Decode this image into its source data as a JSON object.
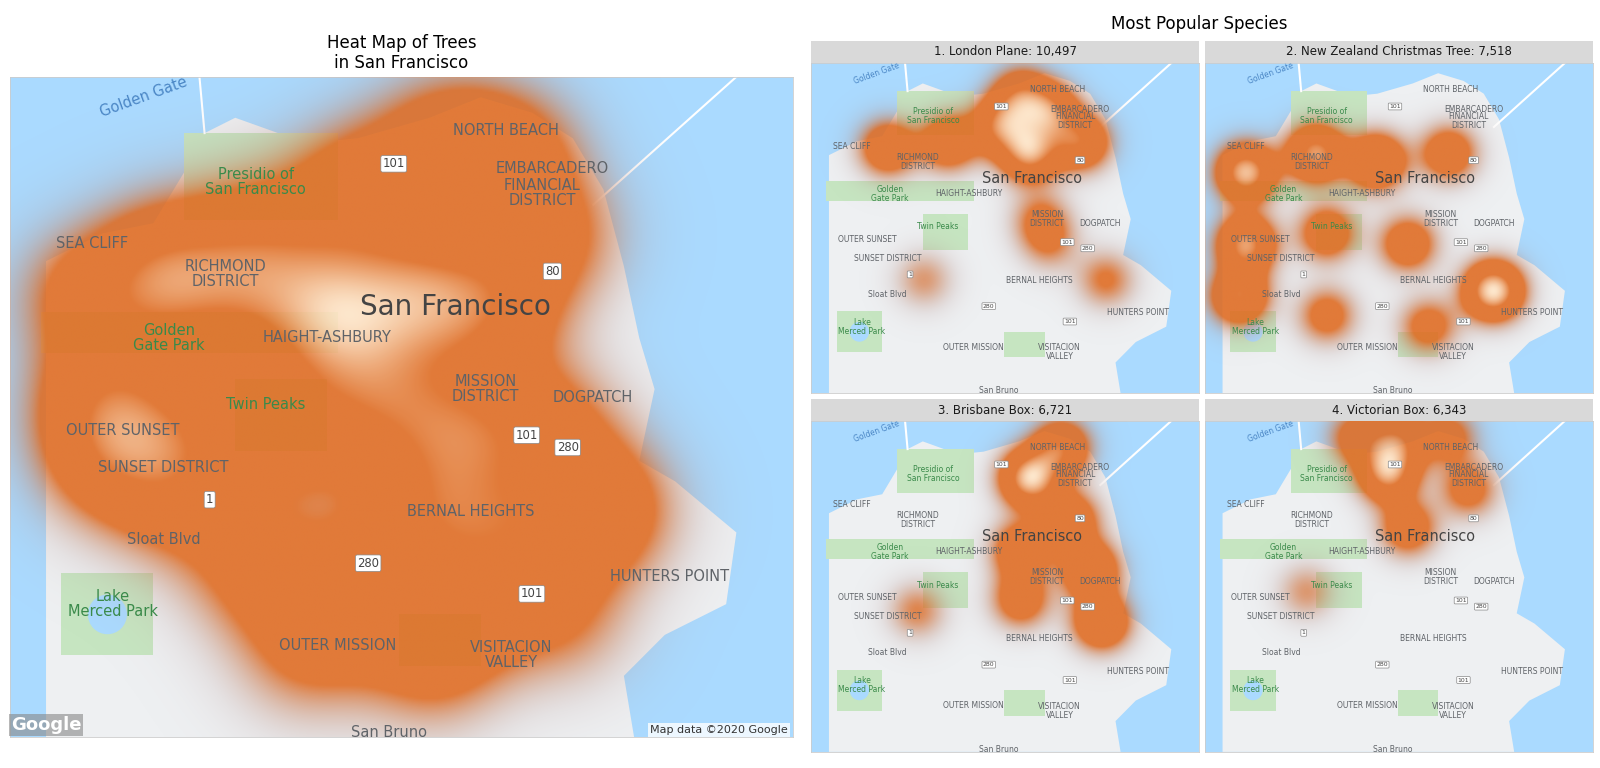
{
  "facet_title": "Most Popular Species",
  "map_labels": [
    "Golden Gate",
    "Presidio of\nSan Francisco",
    "SEA CLIFF",
    "RICHMOND\nDISTRICT",
    "Golden\nGate Park",
    "HAIGHT-ASHBURY",
    "San Francisco",
    "NORTH BEACH",
    "EMBARCADERO",
    "FINANCIAL\nDISTRICT",
    "Twin Peaks",
    "OUTER SUNSET",
    "SUNSET DISTRICT",
    "Sloat Blvd",
    "Lake\nMerced Park",
    "MISSION\nDISTRICT",
    "DOGPATCH",
    "BERNAL HEIGHTS",
    "HUNTERS POINT",
    "VISITACION\nVALLEY",
    "OUTER MISSION",
    "San Bruno"
  ],
  "road_labels": [
    "101",
    "80",
    "280",
    "101",
    "1",
    "280",
    "101"
  ],
  "attribution": [
    "Google",
    "Map data ©2020 Google"
  ],
  "chart_data": [
    {
      "type": "map",
      "title": "Heat Map of Trees\nin San Francisco",
      "xlim": [
        -122.519,
        -122.347
      ],
      "ylim": [
        37.699,
        37.819
      ],
      "tick_labels": false,
      "color": "#e06a1f",
      "hotspots": [
        {
          "lon": -122.503,
          "lat": 37.779,
          "weight": 0.6
        },
        {
          "lon": -122.485,
          "lat": 37.779,
          "weight": 0.6
        },
        {
          "lon": -122.467,
          "lat": 37.779,
          "weight": 0.6
        },
        {
          "lon": -122.449,
          "lat": 37.779,
          "weight": 0.7
        },
        {
          "lon": -122.485,
          "lat": 37.786,
          "weight": 0.6
        },
        {
          "lon": -122.465,
          "lat": 37.79,
          "weight": 0.6
        },
        {
          "lon": -122.443,
          "lat": 37.798,
          "weight": 0.8
        },
        {
          "lon": -122.424,
          "lat": 37.807,
          "weight": 0.7
        },
        {
          "lon": -122.409,
          "lat": 37.805,
          "weight": 0.7
        },
        {
          "lon": -122.4,
          "lat": 37.79,
          "weight": 0.6
        },
        {
          "lon": -122.429,
          "lat": 37.779,
          "weight": 1.0
        },
        {
          "lon": -122.413,
          "lat": 37.777,
          "weight": 0.8
        },
        {
          "lon": -122.447,
          "lat": 37.772,
          "weight": 0.7
        },
        {
          "lon": -122.499,
          "lat": 37.76,
          "weight": 0.8
        },
        {
          "lon": -122.497,
          "lat": 37.749,
          "weight": 0.7
        },
        {
          "lon": -122.481,
          "lat": 37.755,
          "weight": 0.6
        },
        {
          "lon": -122.481,
          "lat": 37.742,
          "weight": 0.6
        },
        {
          "lon": -122.458,
          "lat": 37.755,
          "weight": 0.7
        },
        {
          "lon": -122.436,
          "lat": 37.759,
          "weight": 0.8
        },
        {
          "lon": -122.418,
          "lat": 37.755,
          "weight": 0.8
        },
        {
          "lon": -122.4,
          "lat": 37.755,
          "weight": 0.6
        },
        {
          "lon": -122.427,
          "lat": 37.74,
          "weight": 0.8
        },
        {
          "lon": -122.409,
          "lat": 37.736,
          "weight": 0.7
        },
        {
          "lon": -122.389,
          "lat": 37.74,
          "weight": 0.9
        },
        {
          "lon": -122.465,
          "lat": 37.729,
          "weight": 0.6
        },
        {
          "lon": -122.443,
          "lat": 37.725,
          "weight": 0.7
        },
        {
          "lon": -122.42,
          "lat": 37.721,
          "weight": 0.6
        },
        {
          "lon": -122.398,
          "lat": 37.721,
          "weight": 0.5
        },
        {
          "lon": -122.454,
          "lat": 37.714,
          "weight": 0.5
        },
        {
          "lon": -122.427,
          "lat": 37.712,
          "weight": 0.5
        }
      ]
    },
    {
      "type": "map",
      "title": "1. London Plane: 10,497",
      "xlim": [
        -122.519,
        -122.347
      ],
      "ylim": [
        37.699,
        37.819
      ],
      "tick_labels": false,
      "color": "#e06a1f",
      "hotspots": [
        {
          "lon": -122.485,
          "lat": 37.788,
          "weight": 0.7
        },
        {
          "lon": -122.458,
          "lat": 37.79,
          "weight": 0.7
        },
        {
          "lon": -122.435,
          "lat": 37.796,
          "weight": 0.8
        },
        {
          "lon": -122.422,
          "lat": 37.786,
          "weight": 1.0
        },
        {
          "lon": -122.413,
          "lat": 37.801,
          "weight": 0.8
        },
        {
          "lon": -122.399,
          "lat": 37.79,
          "weight": 0.8
        },
        {
          "lon": -122.426,
          "lat": 37.807,
          "weight": 0.7
        },
        {
          "lon": -122.417,
          "lat": 37.762,
          "weight": 0.4
        },
        {
          "lon": -122.469,
          "lat": 37.74,
          "weight": 0.3
        },
        {
          "lon": -122.388,
          "lat": 37.74,
          "weight": 0.4
        },
        {
          "lon": -122.413,
          "lat": 37.753,
          "weight": 0.3
        }
      ]
    },
    {
      "type": "map",
      "title": "2. New Zealand Christmas Tree: 7,518",
      "xlim": [
        -122.519,
        -122.347
      ],
      "ylim": [
        37.699,
        37.819
      ],
      "tick_labels": false,
      "color": "#e06a1f",
      "hotspots": [
        {
          "lon": -122.501,
          "lat": 37.779,
          "weight": 0.9
        },
        {
          "lon": -122.47,
          "lat": 37.786,
          "weight": 0.8
        },
        {
          "lon": -122.443,
          "lat": 37.783,
          "weight": 0.7
        },
        {
          "lon": -122.501,
          "lat": 37.753,
          "weight": 0.8
        },
        {
          "lon": -122.504,
          "lat": 37.734,
          "weight": 0.7
        },
        {
          "lon": -122.465,
          "lat": 37.757,
          "weight": 0.5
        },
        {
          "lon": -122.429,
          "lat": 37.753,
          "weight": 0.5
        },
        {
          "lon": -122.391,
          "lat": 37.736,
          "weight": 1.0
        },
        {
          "lon": -122.465,
          "lat": 37.727,
          "weight": 0.4
        },
        {
          "lon": -122.42,
          "lat": 37.723,
          "weight": 0.4
        },
        {
          "lon": -122.411,
          "lat": 37.786,
          "weight": 0.5
        }
      ]
    },
    {
      "type": "map",
      "title": "3. Brisbane Box: 6,721",
      "xlim": [
        -122.519,
        -122.347
      ],
      "ylim": [
        37.699,
        37.819
      ],
      "tick_labels": false,
      "color": "#e06a1f",
      "hotspots": [
        {
          "lon": -122.422,
          "lat": 37.798,
          "weight": 1.0
        },
        {
          "lon": -122.408,
          "lat": 37.809,
          "weight": 0.7
        },
        {
          "lon": -122.395,
          "lat": 37.765,
          "weight": 0.7
        },
        {
          "lon": -122.39,
          "lat": 37.746,
          "weight": 0.7
        },
        {
          "lon": -122.426,
          "lat": 37.772,
          "weight": 0.6
        },
        {
          "lon": -122.472,
          "lat": 37.75,
          "weight": 0.3
        },
        {
          "lon": -122.404,
          "lat": 37.783,
          "weight": 0.6
        },
        {
          "lon": -122.426,
          "lat": 37.754,
          "weight": 0.5
        }
      ]
    },
    {
      "type": "map",
      "title": "4. Victorian Box: 6,343",
      "xlim": [
        -122.519,
        -122.347
      ],
      "ylim": [
        37.699,
        37.819
      ],
      "tick_labels": false,
      "color": "#e06a1f",
      "hotspots": [
        {
          "lon": -122.438,
          "lat": 37.8,
          "weight": 1.0
        },
        {
          "lon": -122.434,
          "lat": 37.812,
          "weight": 0.7
        },
        {
          "lon": -122.452,
          "lat": 37.813,
          "weight": 0.5
        },
        {
          "lon": -122.411,
          "lat": 37.813,
          "weight": 0.5
        },
        {
          "lon": -122.429,
          "lat": 37.78,
          "weight": 0.6
        },
        {
          "lon": -122.402,
          "lat": 37.794,
          "weight": 0.5
        },
        {
          "lon": -122.474,
          "lat": 37.757,
          "weight": 0.3
        }
      ]
    }
  ]
}
